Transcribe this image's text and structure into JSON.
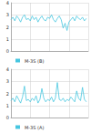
{
  "chart_data": [
    {
      "type": "line",
      "x": [
        0,
        1,
        2,
        3,
        4,
        5,
        6,
        7,
        8,
        9,
        10,
        11,
        12,
        13,
        14,
        15,
        16,
        17,
        18,
        19,
        20,
        21,
        22,
        23,
        24,
        25,
        26,
        27,
        28,
        29,
        30,
        31,
        32,
        33,
        34,
        35,
        36,
        37,
        38,
        39
      ],
      "series": [
        {
          "name": "M-3S (B)",
          "color": "#46c6e0",
          "values": [
            2.6,
            2.8,
            2.5,
            2.9,
            2.7,
            2.4,
            2.8,
            3.0,
            2.6,
            2.7,
            2.5,
            2.9,
            2.6,
            2.8,
            2.4,
            2.7,
            2.9,
            2.6,
            2.5,
            2.8,
            2.7,
            3.0,
            2.6,
            2.4,
            2.7,
            2.9,
            2.6,
            1.9,
            2.3,
            1.7,
            2.4,
            2.6,
            2.8,
            2.5,
            2.9,
            2.7,
            2.6,
            2.8,
            2.5,
            2.7
          ]
        }
      ],
      "xlim": [
        0,
        40
      ],
      "xticks": [
        0,
        10,
        20,
        30,
        40
      ],
      "ylim": [
        0,
        4
      ],
      "yticks": [
        0,
        1,
        2,
        3,
        4
      ],
      "grid": true,
      "legend": "bottom",
      "tick_labels": "y"
    },
    {
      "type": "line",
      "x": [
        0,
        1,
        2,
        3,
        4,
        5,
        6,
        7,
        8,
        9,
        10,
        11,
        12,
        13,
        14,
        15,
        16,
        17,
        18,
        19,
        20,
        21,
        22,
        23,
        24,
        25,
        26,
        27,
        28,
        29,
        30,
        31,
        32,
        33,
        34,
        35,
        36,
        37,
        38,
        39
      ],
      "series": [
        {
          "name": "M-3S (A)",
          "color": "#46c6e0",
          "values": [
            1.4,
            1.6,
            1.3,
            1.8,
            1.5,
            1.2,
            1.7,
            2.6,
            1.4,
            1.5,
            1.3,
            1.6,
            1.4,
            1.8,
            1.2,
            1.5,
            2.4,
            1.6,
            1.3,
            1.5,
            1.4,
            1.7,
            1.3,
            1.6,
            2.9,
            1.5,
            1.4,
            1.6,
            1.3,
            1.5,
            1.4,
            1.7,
            1.5,
            1.3,
            2.2,
            1.6,
            1.4,
            2.5,
            1.5,
            1.3
          ]
        }
      ],
      "xlim": [
        0,
        40
      ],
      "xticks": [
        0,
        10,
        20,
        30,
        40
      ],
      "ylim": [
        0,
        4
      ],
      "yticks": [
        0,
        1,
        2,
        3,
        4
      ],
      "grid": true,
      "legend": "bottom",
      "tick_labels": "y"
    }
  ]
}
